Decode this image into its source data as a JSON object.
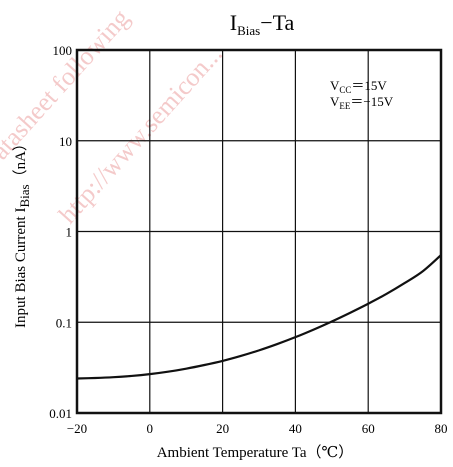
{
  "chart_data": {
    "type": "line",
    "title": {
      "main": "I",
      "sub": "Bias",
      "rest": "−Ta"
    },
    "xlabel": "Ambient Temperature  Ta（℃）",
    "ylabel": {
      "pre": "Input Bias Current  I",
      "sub": "Bias",
      "post": "（nA）"
    },
    "xlim": [
      -20,
      80
    ],
    "ylim": [
      0.01,
      100
    ],
    "yscale": "log",
    "grid": true,
    "x_ticks": [
      {
        "value": -20,
        "label": "−20"
      },
      {
        "value": 0,
        "label": "0"
      },
      {
        "value": 20,
        "label": "20"
      },
      {
        "value": 40,
        "label": "40"
      },
      {
        "value": 60,
        "label": "60"
      },
      {
        "value": 80,
        "label": "80"
      }
    ],
    "y_ticks": [
      {
        "value": 0.01,
        "label": "0.01"
      },
      {
        "value": 0.1,
        "label": "0.1"
      },
      {
        "value": 1,
        "label": "1"
      },
      {
        "value": 10,
        "label": "10"
      },
      {
        "value": 100,
        "label": "100"
      }
    ],
    "annotations": [
      {
        "main": "V",
        "sub": "CC",
        "rest": "＝15V"
      },
      {
        "main": "V",
        "sub": "EE",
        "rest": "＝−15V"
      }
    ],
    "series": [
      {
        "x": [
          -20,
          -15,
          -10,
          -5,
          0,
          5,
          10,
          15,
          20,
          25,
          30,
          35,
          40,
          45,
          50,
          55,
          60,
          65,
          70,
          75,
          80
        ],
        "y": [
          0.024,
          0.0243,
          0.0248,
          0.0256,
          0.0268,
          0.0285,
          0.0308,
          0.0338,
          0.0375,
          0.0425,
          0.049,
          0.0575,
          0.0685,
          0.083,
          0.102,
          0.127,
          0.16,
          0.205,
          0.27,
          0.365,
          0.55
        ]
      }
    ]
  },
  "watermark": [
    "Datasheet following",
    "http://www.semicon..."
  ],
  "colors": {
    "line": "#111111",
    "grid": "#111111",
    "frame": "#111111",
    "watermark": "#f1b9b9"
  }
}
